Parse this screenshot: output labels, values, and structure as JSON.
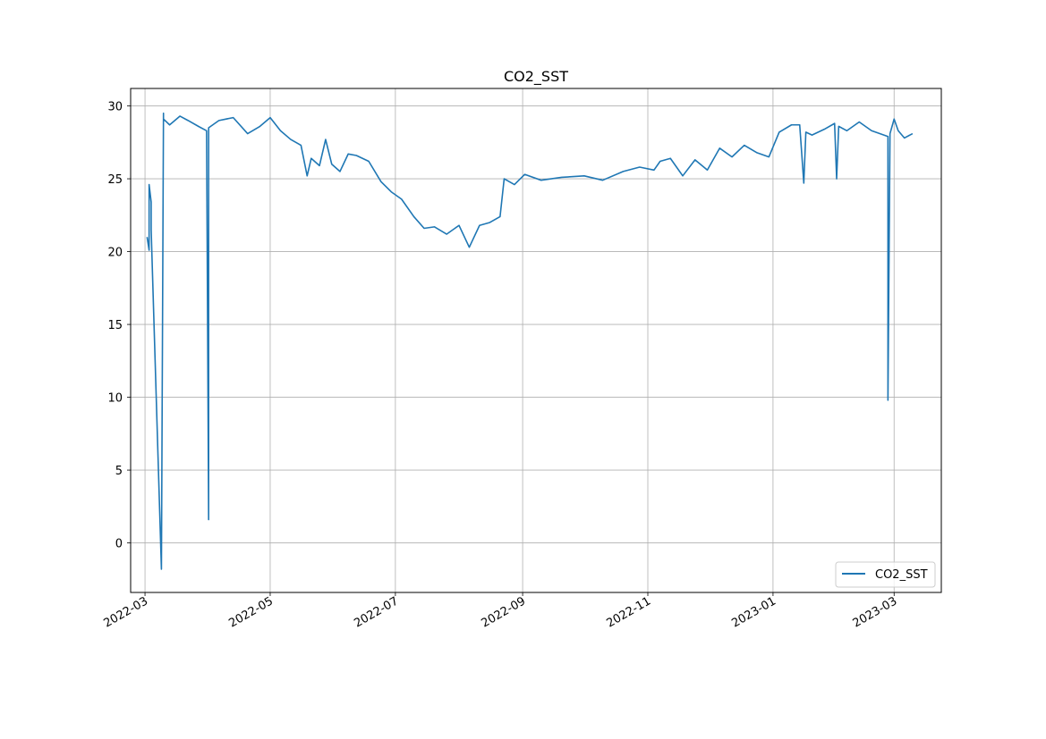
{
  "chart_data": {
    "type": "line",
    "title": "CO2_SST",
    "xlabel": "",
    "ylabel": "",
    "x_type": "date",
    "xlim": [
      "2022-02-22",
      "2023-03-24"
    ],
    "ylim": [
      -3.4,
      31.2
    ],
    "grid": true,
    "legend_position": "lower-right",
    "line_color": "#1f77b4",
    "x_ticks": [
      "2022-03-01",
      "2022-05-01",
      "2022-07-01",
      "2022-09-01",
      "2022-11-01",
      "2023-01-01",
      "2023-03-01"
    ],
    "x_tick_labels": [
      "2022-03",
      "2022-05",
      "2022-07",
      "2022-09",
      "2022-11",
      "2023-01",
      "2023-03"
    ],
    "y_ticks": [
      0,
      5,
      10,
      15,
      20,
      25,
      30
    ],
    "y_tick_labels": [
      "0",
      "5",
      "10",
      "15",
      "20",
      "25",
      "30"
    ],
    "series": [
      {
        "name": "CO2_SST",
        "x": [
          "2022-03-02",
          "2022-03-03",
          "2022-03-03",
          "2022-03-04",
          "2022-03-04",
          "2022-03-09",
          "2022-03-10",
          "2022-03-10",
          "2022-03-13",
          "2022-03-18",
          "2022-03-22",
          "2022-03-27",
          "2022-03-31",
          "2022-04-01",
          "2022-04-01",
          "2022-04-01",
          "2022-04-06",
          "2022-04-13",
          "2022-04-20",
          "2022-04-26",
          "2022-05-01",
          "2022-05-06",
          "2022-05-11",
          "2022-05-16",
          "2022-05-19",
          "2022-05-21",
          "2022-05-25",
          "2022-05-28",
          "2022-05-31",
          "2022-06-04",
          "2022-06-08",
          "2022-06-12",
          "2022-06-18",
          "2022-06-24",
          "2022-06-29",
          "2022-07-04",
          "2022-07-10",
          "2022-07-15",
          "2022-07-20",
          "2022-07-26",
          "2022-08-01",
          "2022-08-06",
          "2022-08-11",
          "2022-08-16",
          "2022-08-21",
          "2022-08-23",
          "2022-08-28",
          "2022-09-02",
          "2022-09-10",
          "2022-09-20",
          "2022-10-01",
          "2022-10-10",
          "2022-10-20",
          "2022-10-28",
          "2022-11-04",
          "2022-11-07",
          "2022-11-12",
          "2022-11-18",
          "2022-11-24",
          "2022-11-30",
          "2022-12-06",
          "2022-12-12",
          "2022-12-18",
          "2022-12-24",
          "2022-12-30",
          "2023-01-04",
          "2023-01-10",
          "2023-01-14",
          "2023-01-16",
          "2023-01-17",
          "2023-01-20",
          "2023-01-26",
          "2023-01-31",
          "2023-02-01",
          "2023-02-02",
          "2023-02-06",
          "2023-02-12",
          "2023-02-18",
          "2023-02-24",
          "2023-02-26",
          "2023-02-26",
          "2023-02-27",
          "2023-03-01",
          "2023-03-03",
          "2023-03-06",
          "2023-03-10"
        ],
        "y": [
          21.0,
          20.1,
          24.6,
          23.4,
          21.5,
          -1.8,
          29.5,
          29.1,
          28.7,
          29.3,
          29.0,
          28.6,
          28.3,
          1.6,
          28.0,
          28.5,
          29.0,
          29.2,
          28.1,
          28.6,
          29.2,
          28.3,
          27.7,
          27.3,
          25.2,
          26.4,
          25.9,
          27.7,
          26.0,
          25.5,
          26.7,
          26.6,
          26.2,
          24.8,
          24.1,
          23.6,
          22.4,
          21.6,
          21.7,
          21.2,
          21.8,
          20.3,
          21.8,
          22.0,
          22.4,
          25.0,
          24.6,
          25.3,
          24.9,
          25.1,
          25.2,
          24.9,
          25.5,
          25.8,
          25.6,
          26.2,
          26.4,
          25.2,
          26.3,
          25.6,
          27.1,
          26.5,
          27.3,
          26.8,
          26.5,
          28.2,
          28.7,
          28.7,
          24.7,
          28.2,
          28.0,
          28.4,
          28.8,
          25.0,
          28.6,
          28.3,
          28.9,
          28.3,
          28.0,
          27.9,
          9.8,
          28.1,
          29.1,
          28.3,
          27.8,
          28.1
        ]
      }
    ]
  }
}
